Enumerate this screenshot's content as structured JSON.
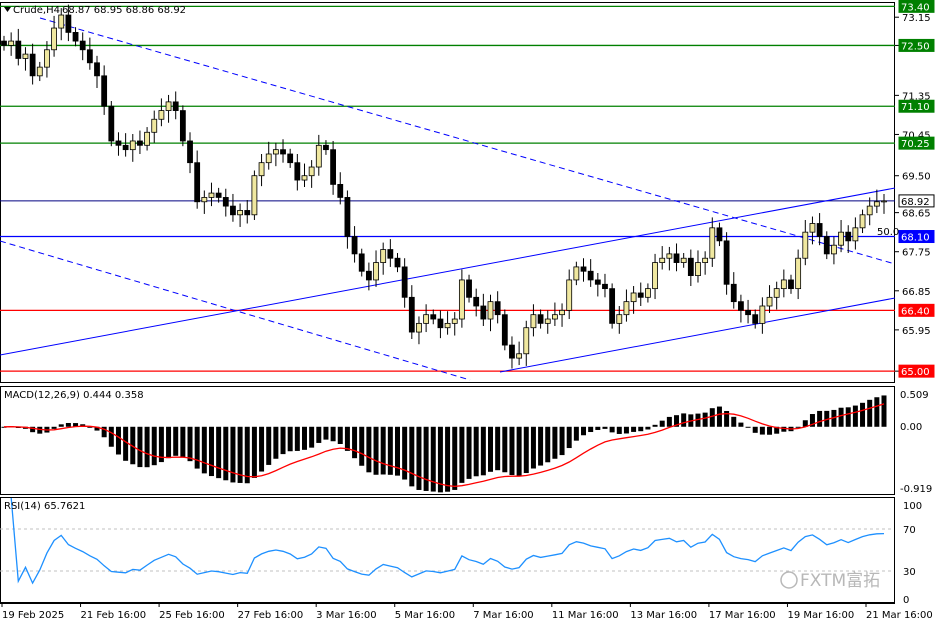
{
  "header": {
    "symbol_label": "Crude,H4",
    "ohlc_label": "68.87 68.95 68.86 68.92",
    "menu_icon": "triangle-down-icon"
  },
  "colors": {
    "up_candle": "#f0e8a0",
    "down_candle": "#000000",
    "support": "#ff0000",
    "resistance": "#008000",
    "pivot": "#0000ff",
    "price_line": "#000080",
    "macd_signal": "#ff0000",
    "rsi_line": "#1e90ff"
  },
  "chart_data": [
    {
      "type": "candlestick",
      "title": "",
      "ylim": [
        64.75,
        73.5
      ],
      "y_ticks": [
        "73.15",
        "72.50",
        "71.35",
        "70.45",
        "69.50",
        "68.65",
        "67.75",
        "66.85",
        "65.95",
        "65.00"
      ],
      "x_labels": [
        "19 Feb 2025",
        "21 Feb 16:00",
        "25 Feb 16:00",
        "27 Feb 16:00",
        "3 Mar 16:00",
        "5 Mar 16:00",
        "7 Mar 16:00",
        "11 Mar 16:00",
        "13 Mar 16:00",
        "17 Mar 16:00",
        "19 Mar 16:00",
        "21 Mar 16:00"
      ],
      "levels": [
        {
          "price": 73.4,
          "label": "73.40",
          "kind": "resistance"
        },
        {
          "price": 72.5,
          "label": "72.50",
          "kind": "resistance"
        },
        {
          "price": 71.1,
          "label": "71.10",
          "kind": "resistance"
        },
        {
          "price": 70.25,
          "label": "70.25",
          "kind": "resistance"
        },
        {
          "price": 68.92,
          "label": "68.92",
          "kind": "current"
        },
        {
          "price": 68.1,
          "label": "68.10",
          "kind": "pivot"
        },
        {
          "price": 66.4,
          "label": "66.40",
          "kind": "support"
        },
        {
          "price": 65.0,
          "label": "65.00",
          "kind": "support"
        }
      ],
      "fib_label": "50.0",
      "closes": [
        72.5,
        72.6,
        72.2,
        72.3,
        71.8,
        72.0,
        72.4,
        72.9,
        73.2,
        72.8,
        72.6,
        72.4,
        72.1,
        71.8,
        71.1,
        70.3,
        70.2,
        70.1,
        70.3,
        70.2,
        70.5,
        70.8,
        71.0,
        71.2,
        71.0,
        70.3,
        69.8,
        68.9,
        69.0,
        69.1,
        69.0,
        68.8,
        68.6,
        68.7,
        68.6,
        69.5,
        69.8,
        70.0,
        70.1,
        70.0,
        69.8,
        69.4,
        69.5,
        69.7,
        70.2,
        70.1,
        69.3,
        69.0,
        68.1,
        67.7,
        67.3,
        67.1,
        67.5,
        67.8,
        67.6,
        67.4,
        66.7,
        65.9,
        66.1,
        66.3,
        66.2,
        66.0,
        66.1,
        66.2,
        67.1,
        66.7,
        66.5,
        66.2,
        66.6,
        66.3,
        65.6,
        65.3,
        65.4,
        66.0,
        66.3,
        66.1,
        66.2,
        66.3,
        66.4,
        67.1,
        67.4,
        67.3,
        67.1,
        67.0,
        66.9,
        66.1,
        66.3,
        66.6,
        66.8,
        66.7,
        66.9,
        67.5,
        67.6,
        67.7,
        67.5,
        67.6,
        67.2,
        67.5,
        67.6,
        68.3,
        68.0,
        67.0,
        66.6,
        66.4,
        66.3,
        66.1,
        66.5,
        66.7,
        66.9,
        67.1,
        66.9,
        67.6,
        68.2,
        68.4,
        68.1,
        67.7,
        67.9,
        68.2,
        68.0,
        68.3,
        68.6,
        68.8,
        68.9,
        68.92
      ],
      "macd": {
        "label": "MACD(12,26,9) 0.444 0.358",
        "ticks": [
          "0.509",
          "0.00",
          "-0.919"
        ],
        "ylim": [
          -0.98,
          0.58
        ]
      },
      "rsi": {
        "label": "RSI(14) 65.7621",
        "ticks": [
          "100",
          "70",
          "30",
          "0"
        ],
        "ylim": [
          0,
          100
        ]
      }
    }
  ],
  "watermark": "FXTM富拓"
}
